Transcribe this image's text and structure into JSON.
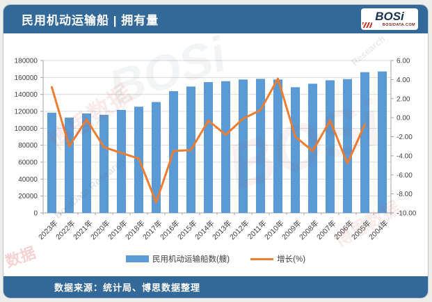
{
  "header": {
    "title": "民用机动运输船 | 拥有量",
    "logo_text": "BOSi",
    "logo_subtext": "BOSIDATA.COM"
  },
  "footer": {
    "source": "数据来源：统计局、博思数据整理"
  },
  "legend": [
    {
      "label": "民用机动运输船数(艘)",
      "type": "bar",
      "color": "#5B9BD5"
    },
    {
      "label": "增长(%)",
      "type": "line",
      "color": "#ED7D31"
    }
  ],
  "chart_data": {
    "type": "bar",
    "subtype": "bar-line-combo",
    "categories": [
      "2023年",
      "2022年",
      "2021年",
      "2020年",
      "2019年",
      "2018年",
      "2017年",
      "2016年",
      "2015年",
      "2014年",
      "2013年",
      "2012年",
      "2011年",
      "2010年",
      "2009年",
      "2008年",
      "2007年",
      "2006年",
      "2005年",
      "2004年"
    ],
    "series": [
      {
        "name": "民用机动运输船数(艘)",
        "type": "bar",
        "axis": "left",
        "color": "#5B9BD5",
        "values": [
          118400,
          112600,
          117500,
          115900,
          121700,
          125500,
          131000,
          143800,
          149300,
          154500,
          155600,
          157600,
          158400,
          157600,
          148500,
          152600,
          156700,
          158100,
          166300,
          167100
        ]
      },
      {
        "name": "增长(%)",
        "type": "line",
        "axis": "right",
        "color": "#ED7D31",
        "values": [
          3.2,
          -3.0,
          -0.2,
          -3.1,
          -3.7,
          -4.3,
          -8.9,
          -3.5,
          -3.4,
          -0.3,
          -1.8,
          -0.1,
          0.8,
          4.1,
          -2.0,
          -3.5,
          -0.3,
          -4.8,
          -0.7,
          null
        ]
      }
    ],
    "left_axis": {
      "min": 0,
      "max": 180000,
      "step": 20000
    },
    "right_axis": {
      "min": -10,
      "max": 6,
      "step": 2,
      "decimals": 2
    },
    "grid": true,
    "legend_position": "bottom",
    "grid_color": "#d9d9d9",
    "axis_color": "#a6a6a6",
    "tick_text_color": "#404040"
  },
  "watermarks": [
    "BOSi",
    "BOSi",
    "博思数据",
    "BosiData Research",
    "博思数据",
    "数据",
    "Research"
  ]
}
